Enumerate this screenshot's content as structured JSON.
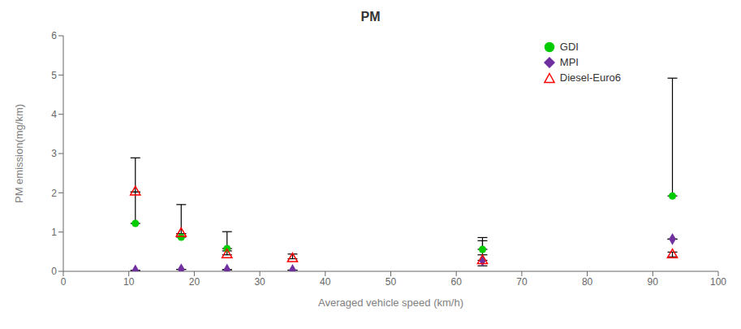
{
  "chart_data": {
    "type": "scatter",
    "title": "PM",
    "x_label": "Averaged vehicle speed (km/h)",
    "y_label": "PM emission(mg/km)",
    "xlim": [
      0,
      100
    ],
    "ylim": [
      0,
      6
    ],
    "xticks": [
      0,
      10,
      20,
      30,
      40,
      50,
      60,
      70,
      80,
      90,
      100
    ],
    "yticks": [
      0,
      1,
      2,
      3,
      4,
      5,
      6
    ],
    "grid": false,
    "legend": "upper right",
    "series": [
      {
        "name": "GDI",
        "color": "#00cc00",
        "marker": "circle",
        "x": [
          11,
          18,
          25,
          64,
          93
        ],
        "values": [
          1.22,
          0.87,
          0.58,
          0.56,
          1.92
        ],
        "error_low": [
          0,
          0,
          0,
          0,
          0
        ],
        "error_high": [
          1.67,
          0.83,
          0.43,
          0.3,
          3.0
        ]
      },
      {
        "name": "MPI",
        "color": "#7030a0",
        "marker": "diamond",
        "x": [
          11,
          18,
          25,
          35,
          64,
          93
        ],
        "values": [
          0.02,
          0.05,
          0.04,
          0.03,
          0.28,
          0.82
        ],
        "error_low": [
          0,
          0,
          0,
          0,
          0,
          0
        ],
        "error_high": [
          0,
          0,
          0,
          0,
          0.5,
          0
        ]
      },
      {
        "name": "Diesel-Euro6",
        "color": "#ff0000",
        "marker": "open_triangle",
        "x": [
          11,
          18,
          25,
          35,
          64,
          93
        ],
        "values": [
          2.02,
          0.96,
          0.42,
          0.32,
          0.27,
          0.42
        ],
        "error_low": [
          0,
          0,
          0,
          0,
          0.13,
          0.05
        ],
        "error_high": [
          0,
          0,
          0.1,
          0.12,
          0.15,
          0.07
        ]
      }
    ]
  }
}
